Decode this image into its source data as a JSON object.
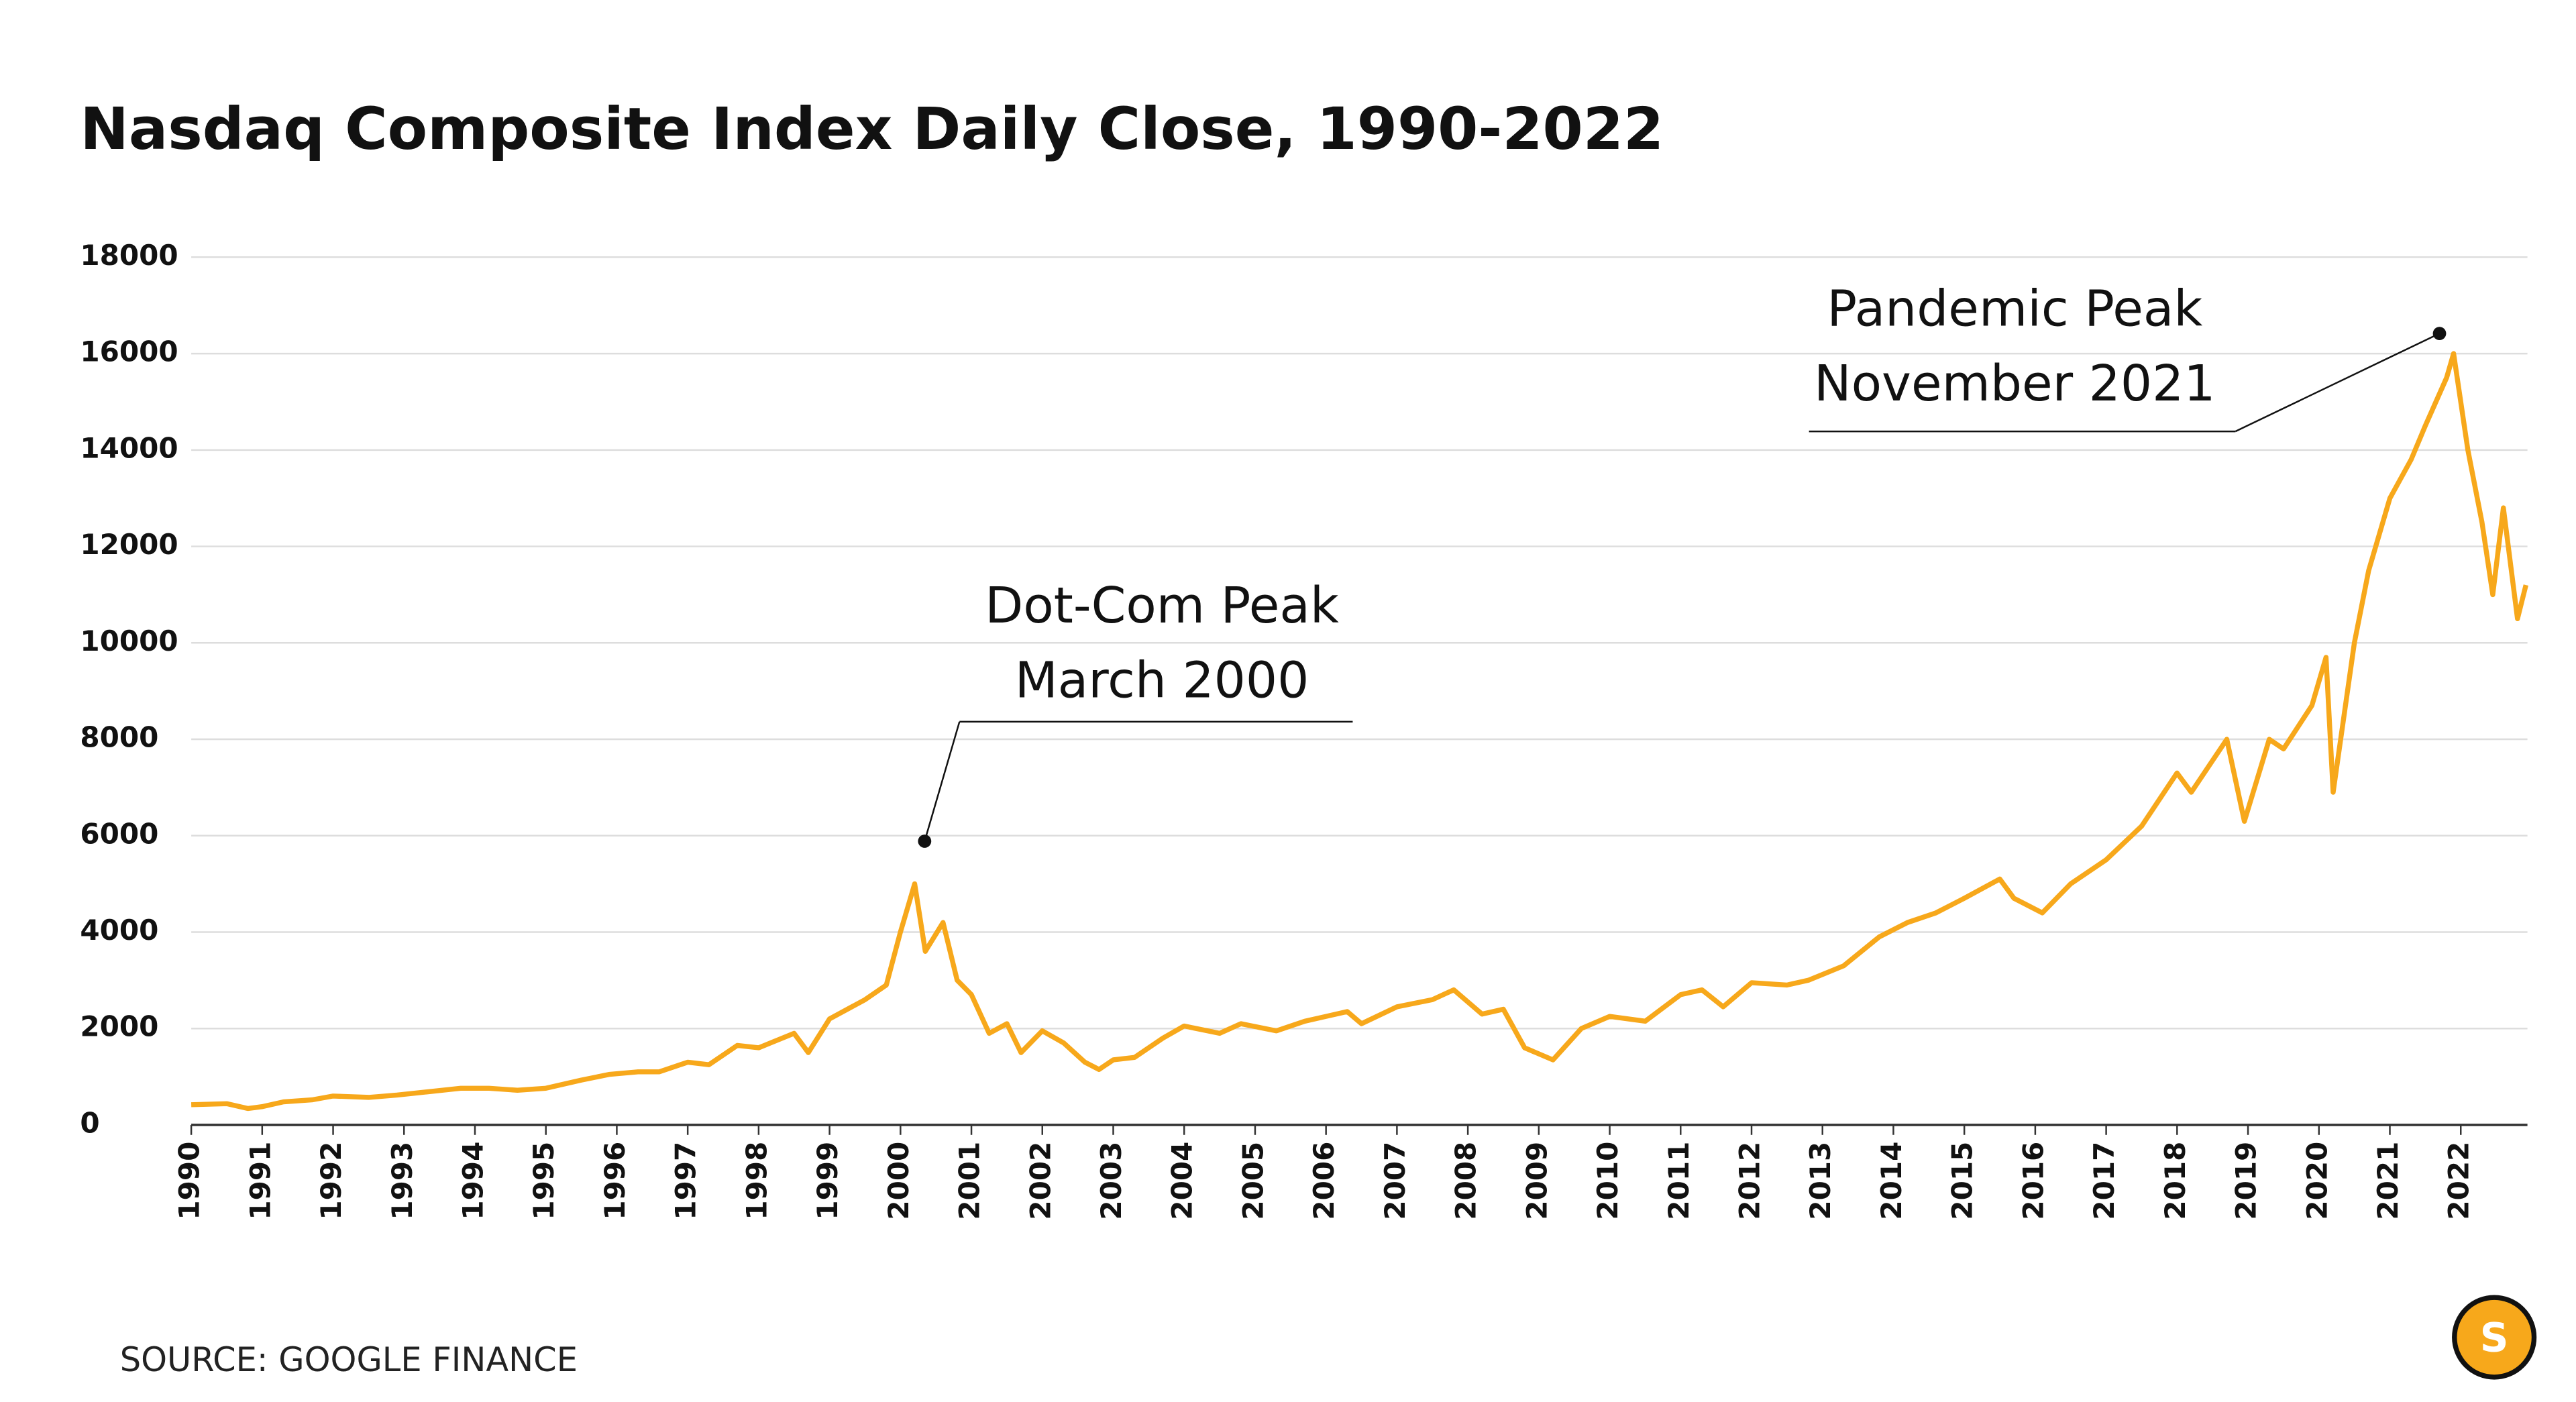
{
  "chart_data": {
    "type": "line",
    "title": "Nasdaq Composite Index Daily Close, 1990-2022",
    "source": "SOURCE: GOOGLE FINANCE",
    "logo": "S",
    "x": [
      1990.0,
      1990.5,
      1990.8,
      1991.0,
      1991.3,
      1991.7,
      1992.0,
      1992.5,
      1992.9,
      1993.3,
      1993.8,
      1994.2,
      1994.6,
      1995.0,
      1995.5,
      1995.9,
      1996.3,
      1996.6,
      1997.0,
      1997.3,
      1997.7,
      1998.0,
      1998.5,
      1998.7,
      1999.0,
      1999.5,
      1999.8,
      2000.0,
      2000.2,
      2000.35,
      2000.6,
      2000.8,
      2001.0,
      2001.25,
      2001.5,
      2001.7,
      2002.0,
      2002.3,
      2002.6,
      2002.8,
      2003.0,
      2003.3,
      2003.7,
      2004.0,
      2004.5,
      2004.8,
      2005.3,
      2005.7,
      2006.0,
      2006.3,
      2006.5,
      2007.0,
      2007.5,
      2007.8,
      2008.2,
      2008.5,
      2008.8,
      2009.2,
      2009.6,
      2010.0,
      2010.5,
      2011.0,
      2011.3,
      2011.6,
      2012.0,
      2012.5,
      2012.8,
      2013.3,
      2013.8,
      2014.2,
      2014.6,
      2015.0,
      2015.5,
      2015.7,
      2016.1,
      2016.5,
      2017.0,
      2017.5,
      2018.0,
      2018.2,
      2018.7,
      2018.95,
      2019.3,
      2019.5,
      2019.9,
      2020.1,
      2020.2,
      2020.5,
      2020.7,
      2021.0,
      2021.3,
      2021.5,
      2021.8,
      2021.9,
      2022.1,
      2022.3,
      2022.45,
      2022.6,
      2022.8,
      2022.92
    ],
    "series": [
      {
        "name": "Nasdaq Composite",
        "color": "#f7a81b",
        "values": [
          420,
          440,
          340,
          380,
          480,
          520,
          600,
          570,
          620,
          680,
          760,
          760,
          720,
          760,
          930,
          1050,
          1100,
          1100,
          1300,
          1250,
          1650,
          1600,
          1900,
          1500,
          2200,
          2600,
          2900,
          4000,
          5000,
          3600,
          4200,
          3000,
          2700,
          1900,
          2100,
          1500,
          1950,
          1700,
          1300,
          1150,
          1350,
          1400,
          1800,
          2050,
          1900,
          2100,
          1950,
          2150,
          2250,
          2350,
          2100,
          2450,
          2600,
          2800,
          2300,
          2400,
          1600,
          1350,
          2000,
          2250,
          2150,
          2700,
          2800,
          2450,
          2950,
          2900,
          3000,
          3300,
          3900,
          4200,
          4400,
          4700,
          5100,
          4700,
          4400,
          5000,
          5500,
          6200,
          7300,
          6900,
          8000,
          6300,
          8000,
          7800,
          8700,
          9700,
          6900,
          10000,
          11500,
          13000,
          13800,
          14500,
          15500,
          16000,
          14000,
          12500,
          11000,
          12800,
          10500,
          11200
        ]
      }
    ],
    "xlim": [
      1990,
      2022.94
    ],
    "xticks": [
      1990,
      1991,
      1992,
      1993,
      1994,
      1995,
      1996,
      1997,
      1998,
      1999,
      2000,
      2001,
      2002,
      2003,
      2004,
      2005,
      2006,
      2007,
      2008,
      2009,
      2010,
      2011,
      2012,
      2013,
      2014,
      2015,
      2016,
      2017,
      2018,
      2019,
      2020,
      2021,
      2022
    ],
    "ylim": [
      0,
      18000
    ],
    "yticks": [
      0,
      2000,
      4000,
      6000,
      8000,
      10000,
      12000,
      14000,
      16000,
      18000
    ],
    "grid": true,
    "annotations": [
      {
        "lines": [
          "Dot-Com Peak",
          "March 2000"
        ]
      },
      {
        "lines": [
          "Pandemic Peak",
          "November 2021"
        ]
      }
    ]
  }
}
